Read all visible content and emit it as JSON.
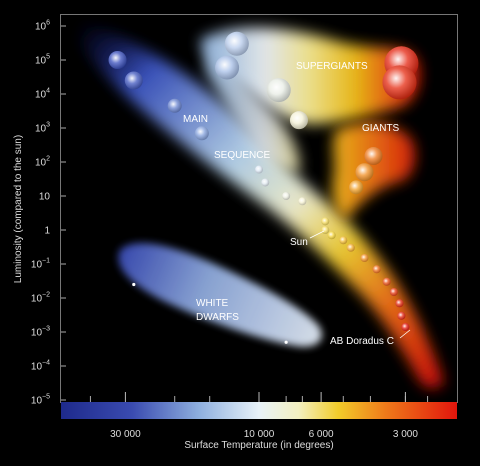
{
  "chart_data": {
    "type": "scatter",
    "title": "",
    "xlabel": "Surface Temperature (in degrees)",
    "ylabel": "Luminosity (compared to the sun)",
    "x_scale": "log (reversed)",
    "y_scale": "log",
    "x_ticks": [
      {
        "label": "30 000",
        "value": 30000
      },
      {
        "label": "10 000",
        "value": 10000
      },
      {
        "label": "6 000",
        "value": 6000
      },
      {
        "label": "3 000",
        "value": 3000
      }
    ],
    "y_ticks": [
      {
        "base": "10",
        "exp": "6"
      },
      {
        "base": "10",
        "exp": "5"
      },
      {
        "base": "10",
        "exp": "4"
      },
      {
        "base": "10",
        "exp": "3"
      },
      {
        "base": "10",
        "exp": "2"
      },
      {
        "base": "10",
        "exp": ""
      },
      {
        "base": "1",
        "exp": ""
      },
      {
        "base": "10",
        "exp": "−1"
      },
      {
        "base": "10",
        "exp": "−2"
      },
      {
        "base": "10",
        "exp": "−3"
      },
      {
        "base": "10",
        "exp": "−4"
      },
      {
        "base": "10",
        "exp": "−5"
      }
    ],
    "region_labels": {
      "supergiants": "SUPERGIANTS",
      "giants": "GIANTS",
      "main_line1": "MAIN",
      "main_line2": "SEQUENCE",
      "white_line1": "WHITE",
      "white_line2": "DWARFS"
    },
    "annotations": {
      "sun": "Sun",
      "ab_doradus": "AB Doradus C"
    },
    "colors": {
      "background": "#000000",
      "hot_blue": "#2a2f9e",
      "white": "#ffffff",
      "yellow": "#f7d21a",
      "red": "#e8140c"
    },
    "stars": [
      {
        "group": "main",
        "temp": 32000,
        "lum": 100000,
        "size": "large"
      },
      {
        "group": "main",
        "temp": 28000,
        "lum": 25000,
        "size": "large"
      },
      {
        "group": "main",
        "temp": 20000,
        "lum": 4500,
        "size": "medium"
      },
      {
        "group": "main",
        "temp": 16000,
        "lum": 700,
        "size": "medium"
      },
      {
        "group": "main",
        "temp": 10000,
        "lum": 60,
        "size": "small"
      },
      {
        "group": "main",
        "temp": 9500,
        "lum": 25,
        "size": "small"
      },
      {
        "group": "main",
        "temp": 8000,
        "lum": 10,
        "size": "small"
      },
      {
        "group": "main",
        "temp": 7000,
        "lum": 7,
        "size": "small"
      },
      {
        "group": "main",
        "temp": 5800,
        "lum": 1.8,
        "size": "small"
      },
      {
        "group": "main",
        "temp": 5800,
        "lum": 1,
        "size": "small"
      },
      {
        "group": "main",
        "temp": 5500,
        "lum": 0.7,
        "size": "small"
      },
      {
        "group": "main",
        "temp": 5000,
        "lum": 0.5,
        "size": "small"
      },
      {
        "group": "main",
        "temp": 4700,
        "lum": 0.3,
        "size": "small"
      },
      {
        "group": "main",
        "temp": 4200,
        "lum": 0.15,
        "size": "small"
      },
      {
        "group": "main",
        "temp": 3800,
        "lum": 0.07,
        "size": "small"
      },
      {
        "group": "main",
        "temp": 3500,
        "lum": 0.03,
        "size": "small"
      },
      {
        "group": "main",
        "temp": 3300,
        "lum": 0.015,
        "size": "small"
      },
      {
        "group": "main",
        "temp": 3150,
        "lum": 0.007,
        "size": "small"
      },
      {
        "group": "main",
        "temp": 3100,
        "lum": 0.003,
        "size": "small"
      },
      {
        "group": "main",
        "temp": 3000,
        "lum": 0.0014,
        "size": "small"
      },
      {
        "group": "supergiant",
        "temp": 12000,
        "lum": 300000,
        "size": "xlarge"
      },
      {
        "group": "supergiant",
        "temp": 13000,
        "lum": 60000,
        "size": "xlarge"
      },
      {
        "group": "supergiant",
        "temp": 8500,
        "lum": 13000,
        "size": "xlarge"
      },
      {
        "group": "supergiant",
        "temp": 7200,
        "lum": 1700,
        "size": "large"
      },
      {
        "group": "supergiant",
        "temp": 3100,
        "lum": 80000,
        "size": "huge"
      },
      {
        "group": "supergiant",
        "temp": 3150,
        "lum": 22000,
        "size": "huge"
      },
      {
        "group": "giant",
        "temp": 3900,
        "lum": 150,
        "size": "large"
      },
      {
        "group": "giant",
        "temp": 4200,
        "lum": 50,
        "size": "large"
      },
      {
        "group": "giant",
        "temp": 4500,
        "lum": 18,
        "size": "medium"
      },
      {
        "group": "white-dwarf",
        "temp": 28000,
        "lum": 0.025,
        "size": "tiny"
      },
      {
        "group": "white-dwarf",
        "temp": 8000,
        "lum": 0.0005,
        "size": "tiny"
      }
    ]
  }
}
